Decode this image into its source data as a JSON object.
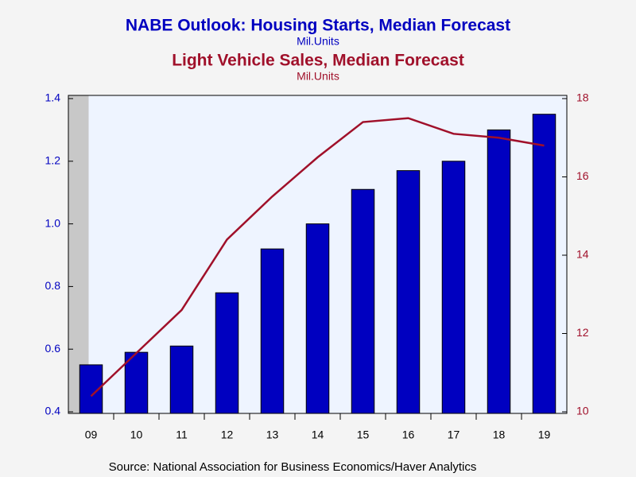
{
  "chart_data": {
    "type": "bar",
    "categories": [
      "09",
      "10",
      "11",
      "12",
      "13",
      "14",
      "15",
      "16",
      "17",
      "18",
      "19"
    ],
    "series": [
      {
        "name": "NABE Outlook: Housing Starts, Median Forecast",
        "units": "Mil.Units",
        "type": "bar",
        "color": "#0000c0",
        "values": [
          0.55,
          0.59,
          0.61,
          0.78,
          0.92,
          1.0,
          1.11,
          1.17,
          1.2,
          1.3,
          1.35
        ]
      },
      {
        "name": "Light Vehicle Sales, Median Forecast",
        "units": "Mil.Units",
        "type": "line",
        "axis": "y2",
        "color": "#a0102a",
        "values": [
          10.4,
          11.5,
          12.6,
          14.4,
          15.5,
          16.5,
          17.4,
          17.5,
          17.1,
          17.0,
          16.8
        ]
      }
    ],
    "ylim": [
      0.4,
      1.4
    ],
    "yticks": [
      0.4,
      0.6,
      0.8,
      {
        "value": 1.0,
        "label": "1.0"
      },
      1.2,
      1.4
    ],
    "y2lim": [
      10,
      18
    ],
    "y2ticks": [
      10,
      12,
      14,
      16,
      18
    ],
    "grid": false,
    "source": "Source:  National Association for Business Economics/Haver Analytics"
  }
}
